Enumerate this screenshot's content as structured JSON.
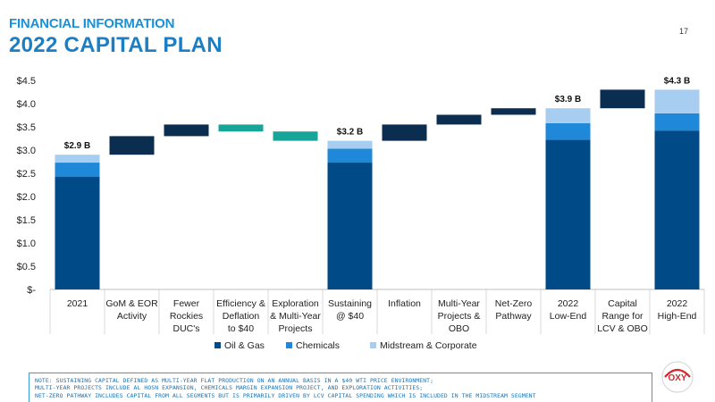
{
  "header": {
    "kicker": "FINANCIAL INFORMATION",
    "title": "2022 CAPITAL PLAN",
    "page_number": "17"
  },
  "chart_data": {
    "type": "bar",
    "subtype": "waterfall",
    "categories": [
      [
        "2021"
      ],
      [
        "GoM & EOR",
        "Activity"
      ],
      [
        "Fewer",
        "Rockies",
        "DUC's"
      ],
      [
        "Efficiency &",
        "Deflation",
        "to $40"
      ],
      [
        "Exploration",
        "& Multi-Year",
        "Projects"
      ],
      [
        "Sustaining",
        "@ $40"
      ],
      [
        "Inflation"
      ],
      [
        "Multi-Year",
        "Projects &",
        "OBO"
      ],
      [
        "Net-Zero",
        "Pathway"
      ],
      [
        "2022",
        "Low-End"
      ],
      [
        "Capital",
        "Range for",
        "LCV & OBO"
      ],
      [
        "2022",
        "High-End"
      ]
    ],
    "y_ticks": [
      "$-",
      "$0.5",
      "$1.0",
      "$1.5",
      "$2.0",
      "$2.5",
      "$3.0",
      "$3.5",
      "$4.0",
      "$4.5"
    ],
    "ylim": [
      0,
      4.5
    ],
    "series": [
      {
        "name": "Oil & Gas",
        "color": "#004b87"
      },
      {
        "name": "Chemicals",
        "color": "#1f88d9"
      },
      {
        "name": "Midstream & Corporate",
        "color": "#a7cdf0"
      }
    ],
    "stacked_totals": [
      {
        "category_index": 0,
        "values": [
          2.43,
          0.3,
          0.17
        ],
        "label": "$2.9 B"
      },
      {
        "category_index": 5,
        "values": [
          2.73,
          0.3,
          0.17
        ],
        "label": "$3.2 B"
      },
      {
        "category_index": 9,
        "values": [
          3.22,
          0.36,
          0.32
        ],
        "label": "$3.9 B"
      },
      {
        "category_index": 11,
        "values": [
          3.42,
          0.37,
          0.51
        ],
        "label": "$4.3 B"
      }
    ],
    "floating_steps": [
      {
        "category_index": 1,
        "from": 2.9,
        "to": 3.3,
        "color": "#0b2d4f"
      },
      {
        "category_index": 2,
        "from": 3.3,
        "to": 3.55,
        "color": "#0b2d4f"
      },
      {
        "category_index": 3,
        "from": 3.4,
        "to": 3.55,
        "color": "#17a59a"
      },
      {
        "category_index": 4,
        "from": 3.2,
        "to": 3.4,
        "color": "#17a59a"
      },
      {
        "category_index": 6,
        "from": 3.2,
        "to": 3.55,
        "color": "#0b2d4f"
      },
      {
        "category_index": 7,
        "from": 3.55,
        "to": 3.76,
        "color": "#0b2d4f"
      },
      {
        "category_index": 8,
        "from": 3.76,
        "to": 3.9,
        "color": "#0b2d4f"
      },
      {
        "category_index": 10,
        "from": 3.9,
        "to": 4.3,
        "color": "#0b2d4f"
      }
    ],
    "legend_position": "bottom",
    "grid": false
  },
  "footnote": {
    "lines": [
      "NOTE: SUSTAINING CAPITAL DEFINED AS MULTI-YEAR FLAT PRODUCTION ON AN ANNUAL BASIS IN A $40 WTI PRICE ENVIRONMENT;",
      "MULTI-YEAR PROJECTS INCLUDE AL HOSN EXPANSION, CHEMICALS MARGIN EXPANSION PROJECT, AND EXPLORATION ACTIVITIES;",
      "NET-ZERO PATHWAY INCLUDES CAPITAL FROM ALL SEGMENTS BUT IS PRIMARILY DRIVEN BY LCV CAPITAL SPENDING WHICH IS INCLUDED IN THE MIDSTREAM SEGMENT"
    ]
  },
  "logo": {
    "text": "OXY",
    "color": "#d9262e"
  }
}
